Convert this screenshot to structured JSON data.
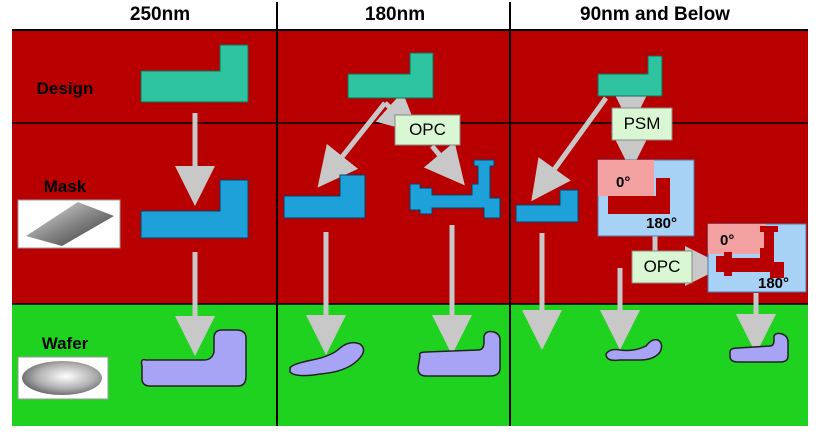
{
  "columns": {
    "c250": "250nm",
    "c180": "180nm",
    "c90": "90nm and Below"
  },
  "rows": {
    "design": "Design",
    "mask": "Mask",
    "wafer": "Wafer"
  },
  "boxes": {
    "opc_180": "OPC",
    "psm": "PSM",
    "opc_90": "OPC"
  },
  "phase_labels": {
    "psm_top": "0°",
    "psm_bottom": "180°",
    "opc_top": "0°",
    "opc_bottom": "180°"
  },
  "colors": {
    "row_design": "#b80000",
    "row_mask": "#b80000",
    "row_wafer": "#1fd21f",
    "design_shape": "#2ec4a0",
    "mask_shape": "#1ea0d8",
    "wafer_shape": "#a8a4f5",
    "label_box": "#d9f7d2",
    "phase_zero": "#f2a0a0",
    "phase_180": "#a8d2f5",
    "arrow": "#c8c8c8"
  }
}
